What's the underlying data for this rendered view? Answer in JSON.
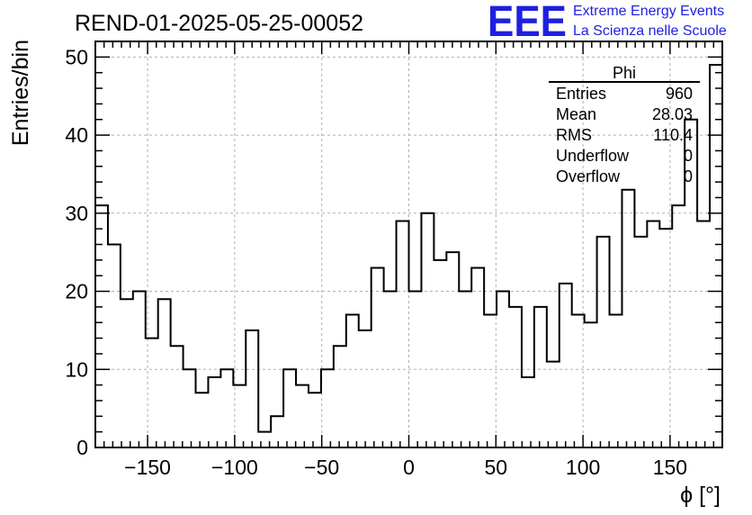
{
  "title": "REND-01-2025-05-25-00052",
  "logo": {
    "text": "EEE",
    "line1": "Extreme Energy Events",
    "line2": "La Scienza nelle Scuole",
    "color": "#1f1fe0"
  },
  "stats_box": {
    "title": "Phi",
    "rows": [
      {
        "label": "Entries",
        "value": "960"
      },
      {
        "label": "Mean",
        "value": "28.03"
      },
      {
        "label": "RMS",
        "value": "110.4"
      },
      {
        "label": "Underflow",
        "value": "0"
      },
      {
        "label": "Overflow",
        "value": "0"
      }
    ]
  },
  "chart_data": {
    "type": "histogram",
    "xlabel": "ϕ [°]",
    "ylabel": "Entries/bin",
    "xlim": [
      -180,
      180
    ],
    "ylim": [
      0,
      52
    ],
    "bin_width": 7.2,
    "x_ticks": [
      -150,
      -100,
      -50,
      0,
      50,
      100,
      150
    ],
    "x_tick_labels": [
      "−150",
      "−100",
      "−50",
      "0",
      "50",
      "100",
      "150"
    ],
    "y_ticks": [
      0,
      10,
      20,
      30,
      40,
      50
    ],
    "y_tick_labels": [
      "0",
      "10",
      "20",
      "30",
      "40",
      "50"
    ],
    "grid": true,
    "values": [
      31,
      26,
      19,
      20,
      14,
      19,
      13,
      10,
      7,
      9,
      10,
      8,
      15,
      2,
      4,
      10,
      8,
      7,
      10,
      13,
      17,
      15,
      23,
      20,
      29,
      20,
      30,
      24,
      25,
      20,
      23,
      17,
      20,
      18,
      9,
      18,
      11,
      21,
      17,
      16,
      27,
      17,
      33,
      27,
      29,
      28,
      31,
      42,
      29,
      49
    ]
  }
}
